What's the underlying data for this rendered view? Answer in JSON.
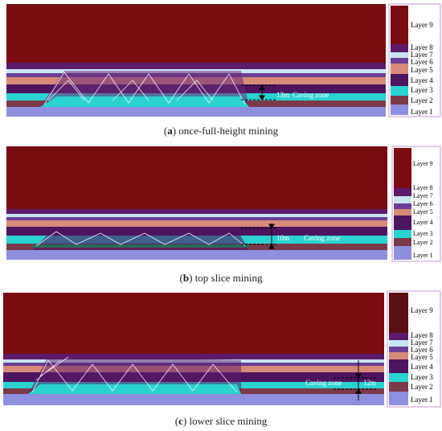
{
  "colors": {
    "layer9": "#7a0c12",
    "layer8": "#5c1a6a",
    "layer7": "#c8e6f0",
    "layer6": "#6b3f96",
    "layer5": "#d88a7a",
    "layer4": "#4d1460",
    "layer3": "#2ad3d0",
    "layer2": "#7b3a4a",
    "layer1": "#8f8fe0",
    "legendBorder": "#d9b8e0",
    "fracture": "#ffffff"
  },
  "panels": [
    {
      "id": "a",
      "letter": "a",
      "caption": "once-full-height mining",
      "annotation": "13m",
      "zone_label": "Caving zone",
      "legend": [
        "Layer 9",
        "Layer 8",
        "Layer 7",
        "Layer 6",
        "Layer 5",
        "Layer 4",
        "Layer 3",
        "Layer 2",
        "Layer 1"
      ]
    },
    {
      "id": "b",
      "letter": "b",
      "caption": "top slice mining",
      "annotation": "10m",
      "zone_label": "Caving zone",
      "legend": [
        "Layer 9",
        "Layer 8",
        "Layer 7",
        "Layer 6",
        "Layer 5",
        "Layer 4",
        "Layer 3",
        "Layer 2",
        "Layer 1"
      ]
    },
    {
      "id": "c",
      "letter": "c",
      "caption": "lower slice mining",
      "annotation": "12m",
      "zone_label": "Caving zone",
      "legend": [
        "Layer 9",
        "Layer 8",
        "Layer 7",
        "Layer 6",
        "Layer 5",
        "Layer 4",
        "Layer 3",
        "Layer 2",
        "Layer 1"
      ]
    }
  ]
}
